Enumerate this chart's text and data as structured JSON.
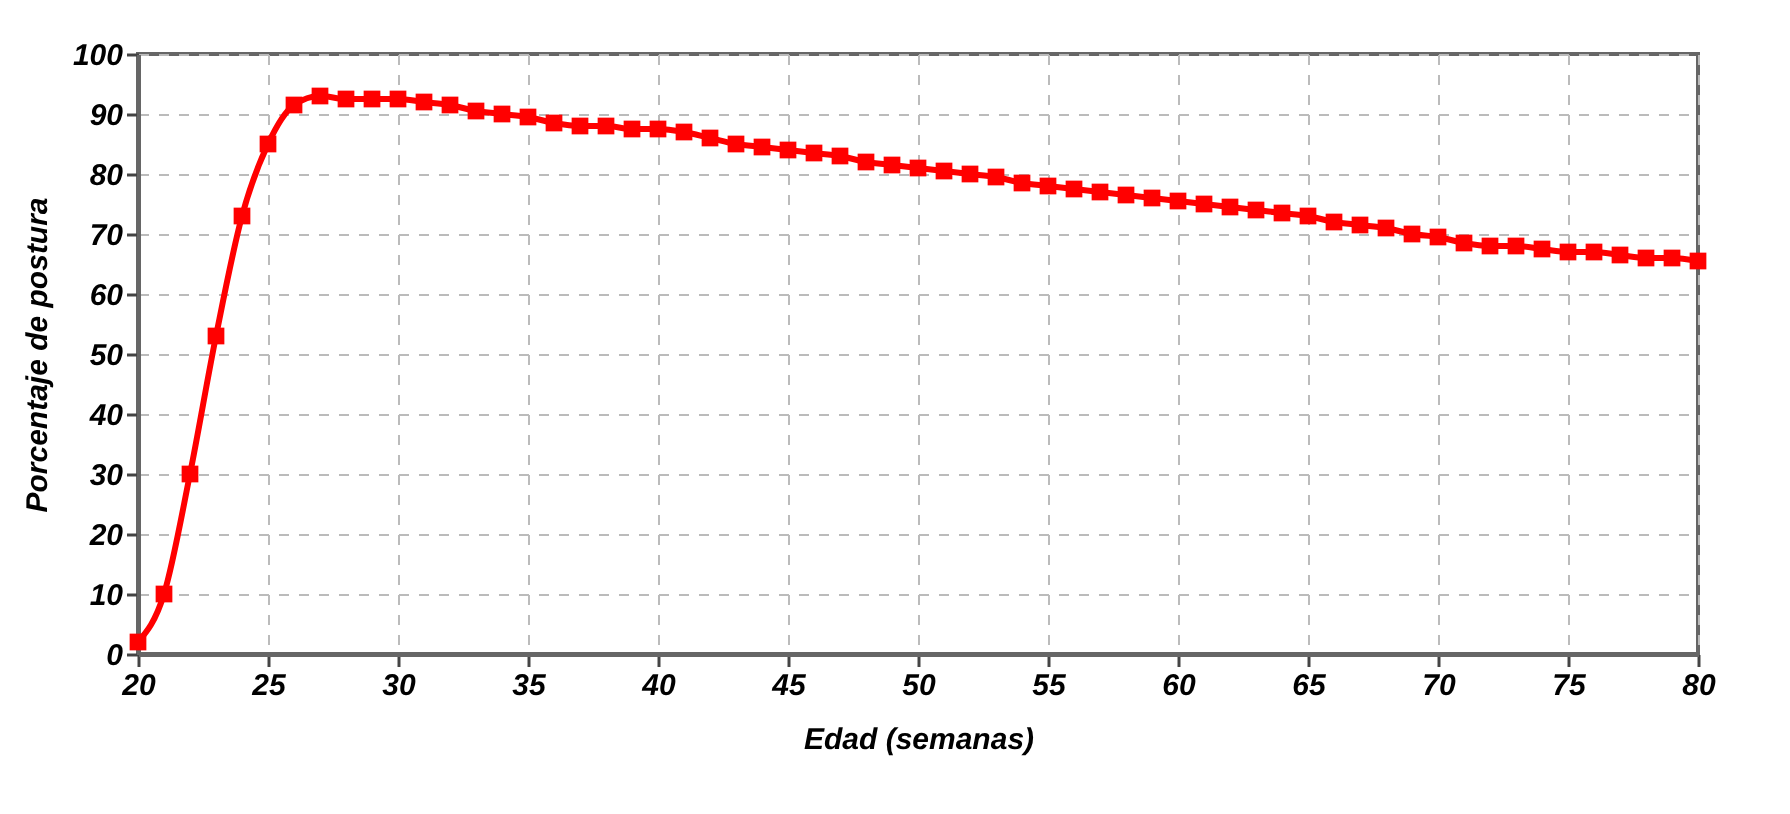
{
  "chart_data": {
    "type": "line",
    "xlabel": "Edad (semanas)",
    "ylabel": "Porcentaje de postura",
    "x": [
      20,
      21,
      22,
      23,
      24,
      25,
      26,
      27,
      28,
      29,
      30,
      31,
      32,
      33,
      34,
      35,
      36,
      37,
      38,
      39,
      40,
      41,
      42,
      43,
      44,
      45,
      46,
      47,
      48,
      49,
      50,
      51,
      52,
      53,
      54,
      55,
      56,
      57,
      58,
      59,
      60,
      61,
      62,
      63,
      64,
      65,
      66,
      67,
      68,
      69,
      70,
      71,
      72,
      73,
      74,
      75,
      76,
      77,
      78,
      79,
      80
    ],
    "series": [
      {
        "color": "#ff0000",
        "values": [
          2,
          10,
          30,
          53,
          73,
          85,
          91.5,
          93,
          92.5,
          92.5,
          92.5,
          92,
          91.5,
          90.5,
          90,
          89.5,
          88.5,
          88,
          88,
          87.5,
          87.5,
          87,
          86,
          85,
          84.5,
          84,
          83.5,
          83,
          82,
          81.5,
          81,
          80.5,
          80,
          79.5,
          78.5,
          78,
          77.5,
          77,
          76.5,
          76,
          75.5,
          75,
          74.5,
          74,
          73.5,
          73,
          72,
          71.5,
          71,
          70,
          69.5,
          68.5,
          68,
          68,
          67.5,
          67,
          67,
          66.5,
          66,
          66,
          65.5
        ]
      }
    ],
    "xlim": [
      20,
      80
    ],
    "xticks": [
      20,
      25,
      30,
      35,
      40,
      45,
      50,
      55,
      60,
      65,
      70,
      75,
      80
    ],
    "ylim": [
      0,
      100
    ],
    "yticks": [
      0,
      10,
      20,
      30,
      40,
      50,
      60,
      70,
      80,
      90,
      100
    ],
    "grid": true,
    "marker": "square",
    "line_style": "solid",
    "legend": false
  }
}
